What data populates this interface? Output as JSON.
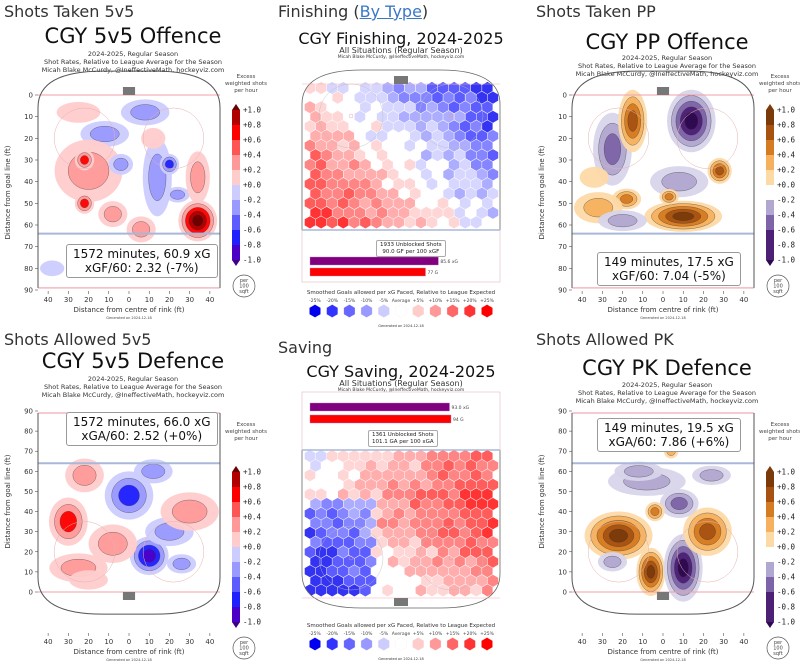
{
  "common": {
    "subtitle_line1": "2024-2025, Regular Season",
    "subtitle_line2": "Shot Rates, Relative to League Average for the Season",
    "subtitle_line3": "Micah Blake McCurdy, @IneffectiveMath, hockeyviz.com",
    "colorbar_title_1": "Excess",
    "colorbar_title_2": "weighted shots",
    "colorbar_title_3": "per hour",
    "per_area_1": "per",
    "per_area_2": "100",
    "per_area_3": "sqft",
    "xlabel": "Distance from centre of rink (ft)",
    "ylabel": "Distance from goal line (ft)",
    "generated": "Generated on 2024-12-18",
    "fin_author": "Micah Blake McCurdy, @IneffectiveMath, hockeyviz.com",
    "fin_situation": "All Situations (Regular Season)",
    "hex_legend_caption": "Smoothed Goals allowed per xG Faced, Relative to League Expected"
  },
  "panels": [
    {
      "section": "Shots Taken 5v5",
      "title": "CGY 5v5 Offence",
      "info1": "1572 minutes, 60.9 xG",
      "info2": "xGF/60: 2.32 (-7%)"
    },
    {
      "section": "Finishing",
      "section_link": "By Type",
      "title": "CGY Finishing, 2024-2025",
      "box1": "1933 Unblocked Shots",
      "box2": "90.0 GF per 100 xGF",
      "bar1_label": "85.6 xG",
      "bar2_label": "77 G"
    },
    {
      "section": "Shots Taken PP",
      "title": "CGY PP Offence",
      "info1": "149 minutes, 17.5 xG",
      "info2": "xGF/60: 7.04 (-5%)"
    },
    {
      "section": "Shots Allowed 5v5",
      "title": "CGY 5v5 Defence",
      "info1": "1572 minutes, 66.0 xG",
      "info2": "xGA/60: 2.52 (+0%)"
    },
    {
      "section": "Saving",
      "title": "CGY Saving, 2024-2025",
      "box1": "1361 Unblocked Shots",
      "box2": "101.1 GA per 100 xGA",
      "bar1_label": "93.0 xG",
      "bar2_label": "94 G"
    },
    {
      "section": "Shots Allowed PK",
      "title": "CGY PK Defence",
      "info1": "149 minutes, 19.5 xG",
      "info2": "xGA/60: 7.86 (+6%)"
    }
  ],
  "colors": {
    "red_scale": [
      "#3d0086",
      "#4b00c8",
      "#2020ff",
      "#5c5cff",
      "#9999ff",
      "#ccccff",
      "#ffffff",
      "#ffcccc",
      "#ff9999",
      "#ff5555",
      "#ff0000",
      "#b00000",
      "#6a0000"
    ],
    "orange_scale": [
      "#2d0a4e",
      "#4b2075",
      "#7d63a8",
      "#b2a7d0",
      "#d8d4ea",
      "#ffffff",
      "#fdd9a6",
      "#f5b15d",
      "#d57b22",
      "#a85212",
      "#7a3a0a"
    ],
    "finishing_bar_xg": "#800080",
    "finishing_bar_g": "#ff0000"
  },
  "chart_data": [
    {
      "type": "heatmap",
      "title": "CGY 5v5 Offence",
      "xlabel": "Distance from centre of rink (ft)",
      "ylabel": "Distance from goal line (ft)",
      "x_ticks": [
        40,
        30,
        20,
        10,
        0,
        10,
        20,
        30,
        40
      ],
      "y_ticks": [
        0,
        10,
        20,
        30,
        40,
        50,
        60,
        70,
        80,
        90
      ],
      "y_direction": "down",
      "colorbar_ticks": [
        "+1.0",
        "+0.8",
        "+0.6",
        "+0.4",
        "+0.2",
        "+0.0",
        "-0.2",
        "-0.4",
        "-0.6",
        "-0.8",
        "-1.0"
      ],
      "colormap": "blue-white-red",
      "stats": {
        "minutes": 1572,
        "xG": 60.9,
        "xGF_per_60": 2.32,
        "relative_pct": -7
      }
    },
    {
      "type": "heatmap",
      "title": "CGY Finishing, 2024-2025",
      "subtitle": "All Situations (Regular Season)",
      "unblocked_shots": 1933,
      "gf_per_100_xgf": 90.0,
      "bars": [
        {
          "label": "85.6 xG",
          "value": 85.6
        },
        {
          "label": "77 G",
          "value": 77
        }
      ],
      "legend_ticks": [
        "-25%",
        "-20%",
        "-15%",
        "-10%",
        "-5%",
        "Average",
        "+5%",
        "+10%",
        "+15%",
        "+20%",
        "+25%"
      ]
    },
    {
      "type": "heatmap",
      "title": "CGY PP Offence",
      "xlabel": "Distance from centre of rink (ft)",
      "ylabel": "Distance from goal line (ft)",
      "x_ticks": [
        40,
        30,
        20,
        10,
        0,
        10,
        20,
        30,
        40
      ],
      "y_ticks": [
        0,
        10,
        20,
        30,
        40,
        50,
        60,
        70,
        80,
        90
      ],
      "y_direction": "down",
      "colorbar_ticks": [
        "+1.0",
        "+0.8",
        "+0.6",
        "+0.4",
        "+0.2",
        "+0.0",
        "-0.2",
        "-0.4",
        "-0.6",
        "-0.8",
        "-1.0"
      ],
      "colormap": "purple-white-orange",
      "stats": {
        "minutes": 149,
        "xG": 17.5,
        "xGF_per_60": 7.04,
        "relative_pct": -5
      }
    },
    {
      "type": "heatmap",
      "title": "CGY 5v5 Defence",
      "xlabel": "Distance from centre of rink (ft)",
      "ylabel": "Distance from goal line (ft)",
      "x_ticks": [
        40,
        30,
        20,
        10,
        0,
        10,
        20,
        30,
        40
      ],
      "y_ticks": [
        90,
        80,
        70,
        60,
        50,
        40,
        30,
        20,
        10,
        0
      ],
      "y_direction": "up",
      "colorbar_ticks": [
        "+1.0",
        "+0.8",
        "+0.6",
        "+0.4",
        "+0.2",
        "+0.0",
        "-0.2",
        "-0.4",
        "-0.6",
        "-0.8",
        "-1.0"
      ],
      "colormap": "blue-white-red",
      "stats": {
        "minutes": 1572,
        "xG": 66.0,
        "xGA_per_60": 2.52,
        "relative_pct": 0
      }
    },
    {
      "type": "heatmap",
      "title": "CGY Saving, 2024-2025",
      "subtitle": "All Situations (Regular Season)",
      "unblocked_shots": 1361,
      "ga_per_100_xga": 101.1,
      "bars": [
        {
          "label": "93.0 xG",
          "value": 93.0
        },
        {
          "label": "94 G",
          "value": 94
        }
      ],
      "legend_ticks": [
        "-25%",
        "-20%",
        "-15%",
        "-10%",
        "-5%",
        "Average",
        "+5%",
        "+10%",
        "+15%",
        "+20%",
        "+25%"
      ]
    },
    {
      "type": "heatmap",
      "title": "CGY PK Defence",
      "xlabel": "Distance from centre of rink (ft)",
      "ylabel": "Distance from goal line (ft)",
      "x_ticks": [
        40,
        30,
        20,
        10,
        0,
        10,
        20,
        30,
        40
      ],
      "y_ticks": [
        90,
        80,
        70,
        60,
        50,
        40,
        30,
        20,
        10,
        0
      ],
      "y_direction": "up",
      "colorbar_ticks": [
        "+1.0",
        "+0.8",
        "+0.6",
        "+0.4",
        "+0.2",
        "+0.0",
        "-0.2",
        "-0.4",
        "-0.6",
        "-0.8",
        "-1.0"
      ],
      "colormap": "purple-white-orange",
      "stats": {
        "minutes": 149,
        "xG": 19.5,
        "xGA_per_60": 7.86,
        "relative_pct": 6
      }
    }
  ]
}
